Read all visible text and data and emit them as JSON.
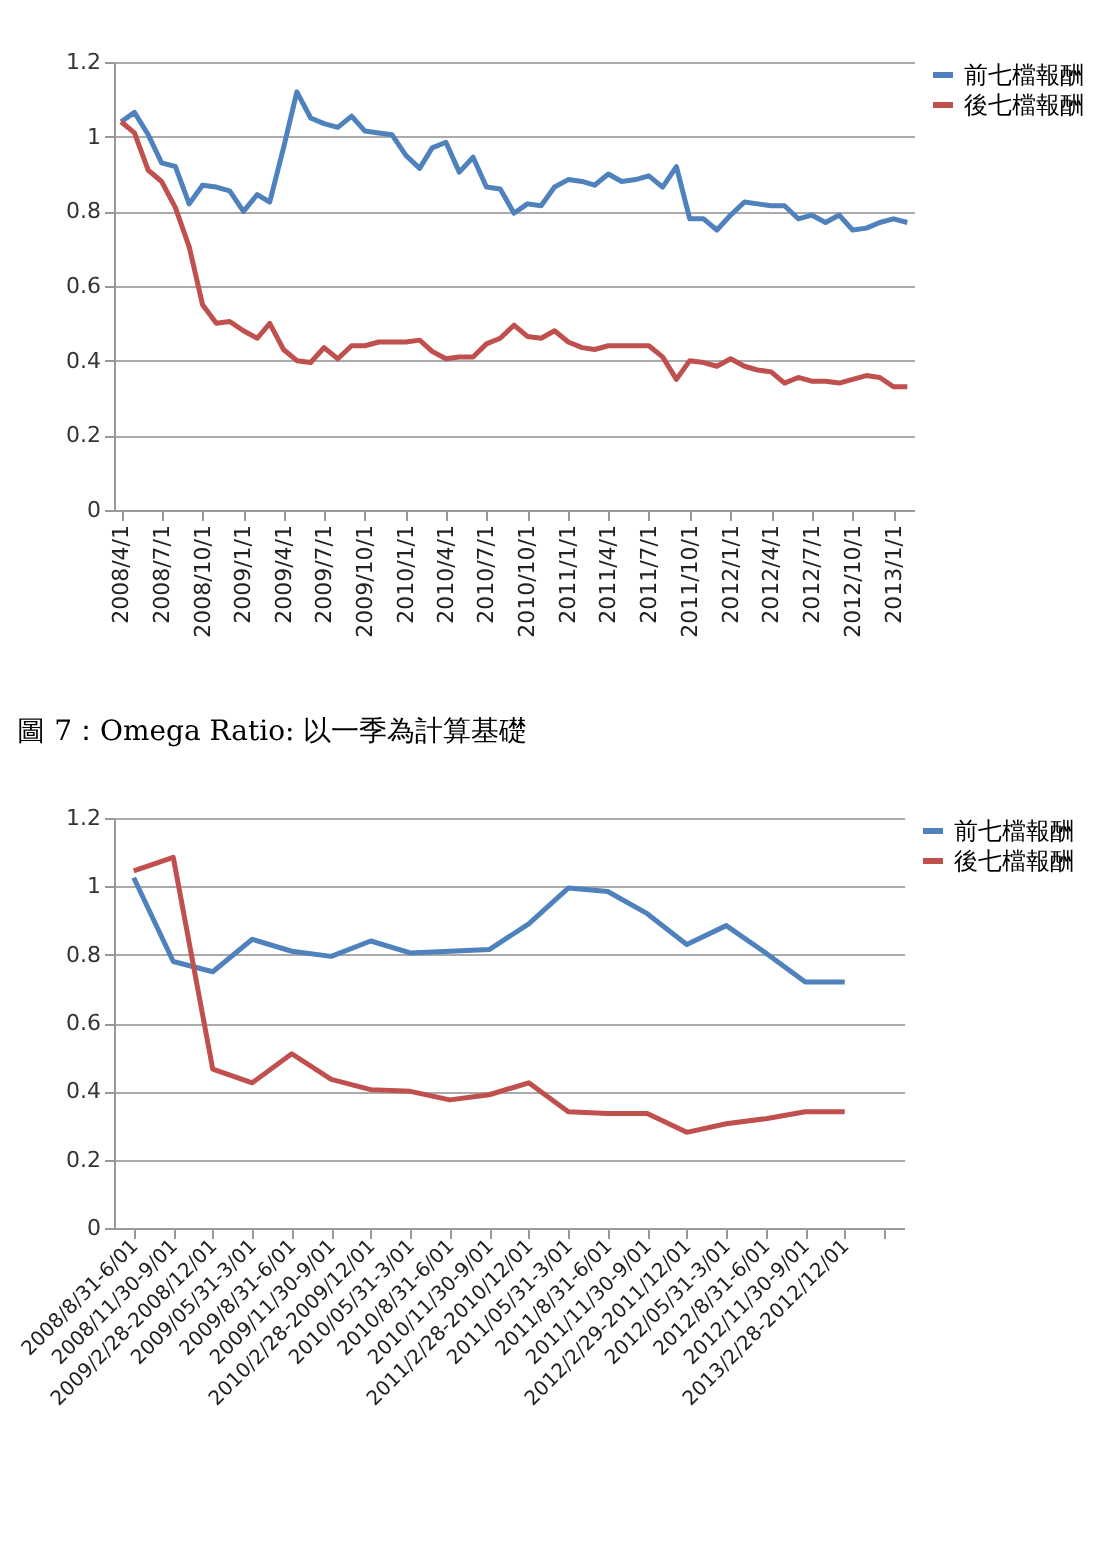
{
  "chart_data": [
    {
      "type": "line",
      "x": [
        "2008-04",
        "2008-05",
        "2008-06",
        "2008-07",
        "2008-08",
        "2008-09",
        "2008-10",
        "2008-11",
        "2008-12",
        "2009-01",
        "2009-02",
        "2009-03",
        "2009-04",
        "2009-05",
        "2009-06",
        "2009-07",
        "2009-08",
        "2009-09",
        "2009-10",
        "2009-11",
        "2009-12",
        "2010-01",
        "2010-02",
        "2010-03",
        "2010-04",
        "2010-05",
        "2010-06",
        "2010-07",
        "2010-08",
        "2010-09",
        "2010-10",
        "2010-11",
        "2010-12",
        "2011-01",
        "2011-02",
        "2011-03",
        "2011-04",
        "2011-05",
        "2011-06",
        "2011-07",
        "2011-08",
        "2011-09",
        "2011-10",
        "2011-11",
        "2011-12",
        "2012-01",
        "2012-02",
        "2012-03",
        "2012-04",
        "2012-05",
        "2012-06",
        "2012-07",
        "2012-08",
        "2012-09",
        "2012-10",
        "2012-11",
        "2012-12",
        "2013-01",
        "2013-02"
      ],
      "series": [
        {
          "name": "前七檔報酬",
          "color": "#4f81bd",
          "values": [
            1.04,
            1.065,
            1.005,
            0.93,
            0.92,
            0.82,
            0.87,
            0.865,
            0.855,
            0.8,
            0.845,
            0.825,
            0.97,
            1.12,
            1.05,
            1.035,
            1.025,
            1.055,
            1.015,
            1.01,
            1.005,
            0.95,
            0.915,
            0.97,
            0.985,
            0.905,
            0.945,
            0.865,
            0.86,
            0.795,
            0.82,
            0.815,
            0.865,
            0.885,
            0.88,
            0.87,
            0.9,
            0.88,
            0.885,
            0.895,
            0.865,
            0.92,
            0.78,
            0.78,
            0.75,
            0.79,
            0.825,
            0.82,
            0.815,
            0.815,
            0.78,
            0.79,
            0.77,
            0.79,
            0.75,
            0.755,
            0.77,
            0.78,
            0.77
          ]
        },
        {
          "name": "後七檔報酬",
          "color": "#c0504d",
          "values": [
            1.04,
            1.01,
            0.91,
            0.88,
            0.81,
            0.705,
            0.55,
            0.5,
            0.505,
            0.48,
            0.46,
            0.5,
            0.43,
            0.4,
            0.395,
            0.435,
            0.405,
            0.44,
            0.44,
            0.45,
            0.45,
            0.45,
            0.455,
            0.425,
            0.405,
            0.41,
            0.41,
            0.445,
            0.46,
            0.495,
            0.465,
            0.46,
            0.48,
            0.45,
            0.435,
            0.43,
            0.44,
            0.44,
            0.44,
            0.44,
            0.41,
            0.35,
            0.4,
            0.395,
            0.385,
            0.405,
            0.385,
            0.375,
            0.37,
            0.34,
            0.355,
            0.345,
            0.345,
            0.34,
            0.35,
            0.36,
            0.355,
            0.33,
            0.33
          ]
        }
      ],
      "xlim": [
        "2008-03-16",
        "2013-02-16"
      ],
      "xticks": [
        {
          "value": "2008-04",
          "label": "2008/4/1"
        },
        {
          "value": "2008-07",
          "label": "2008/7/1"
        },
        {
          "value": "2008-10",
          "label": "2008/10/1"
        },
        {
          "value": "2009-01",
          "label": "2009/1/1"
        },
        {
          "value": "2009-04",
          "label": "2009/4/1"
        },
        {
          "value": "2009-07",
          "label": "2009/7/1"
        },
        {
          "value": "2009-10",
          "label": "2009/10/1"
        },
        {
          "value": "2010-01",
          "label": "2010/1/1"
        },
        {
          "value": "2010-04",
          "label": "2010/4/1"
        },
        {
          "value": "2010-07",
          "label": "2010/7/1"
        },
        {
          "value": "2010-10",
          "label": "2010/10/1"
        },
        {
          "value": "2011-01",
          "label": "2011/1/1"
        },
        {
          "value": "2011-04",
          "label": "2011/4/1"
        },
        {
          "value": "2011-07",
          "label": "2011/7/1"
        },
        {
          "value": "2011-10",
          "label": "2011/10/1"
        },
        {
          "value": "2012-01",
          "label": "2012/1/1"
        },
        {
          "value": "2012-04",
          "label": "2012/4/1"
        },
        {
          "value": "2012-07",
          "label": "2012/7/1"
        },
        {
          "value": "2012-10",
          "label": "2012/10/1"
        },
        {
          "value": "2013-01",
          "label": "2013/1/1"
        }
      ],
      "ylim": [
        0,
        1.2
      ],
      "yticks": [
        0,
        0.2,
        0.4,
        0.6,
        0.8,
        1,
        1.2
      ],
      "grid": "y",
      "legend": "right"
    },
    {
      "type": "line",
      "title": "圖 7：Omega Ratio: 以一季為計算基礎",
      "categories": [
        "2008/8/31-6/01",
        "2008/11/30-9/01",
        "2009/2/28-2008/12/01",
        "2009/05/31-3/01",
        "2009/8/31-6/01",
        "2009/11/30-9/01",
        "2010/2/28-2009/12/01",
        "2010/05/31-3/01",
        "2010/8/31-6/01",
        "2010/11/30-9/01",
        "2011/2/28-2010/12/01",
        "2011/05/31-3/01",
        "2011/8/31-6/01",
        "2011/11/30-9/01",
        "2012/2/29-2011/12/01",
        "2012/05/31-3/01",
        "2012/8/31-6/01",
        "2012/11/30-9/01",
        "2013/2/28-2012/12/01",
        null
      ],
      "series": [
        {
          "name": "前七檔報酬",
          "color": "#4f81bd",
          "values": [
            1.025,
            0.78,
            0.75,
            0.845,
            0.81,
            0.795,
            0.84,
            0.805,
            0.81,
            0.815,
            0.89,
            0.995,
            0.985,
            0.92,
            0.83,
            0.885,
            0.805,
            0.72,
            0.72,
            null
          ]
        },
        {
          "name": "後七檔報酬",
          "color": "#c0504d",
          "values": [
            1.045,
            1.085,
            0.465,
            0.425,
            0.51,
            0.435,
            0.405,
            0.4,
            0.375,
            0.39,
            0.425,
            0.34,
            0.335,
            0.335,
            0.28,
            0.305,
            0.32,
            0.34,
            0.34,
            null
          ]
        }
      ],
      "ylim": [
        0,
        1.2
      ],
      "yticks": [
        0,
        0.2,
        0.4,
        0.6,
        0.8,
        1,
        1.2
      ],
      "grid": "y",
      "legend": "right"
    }
  ]
}
